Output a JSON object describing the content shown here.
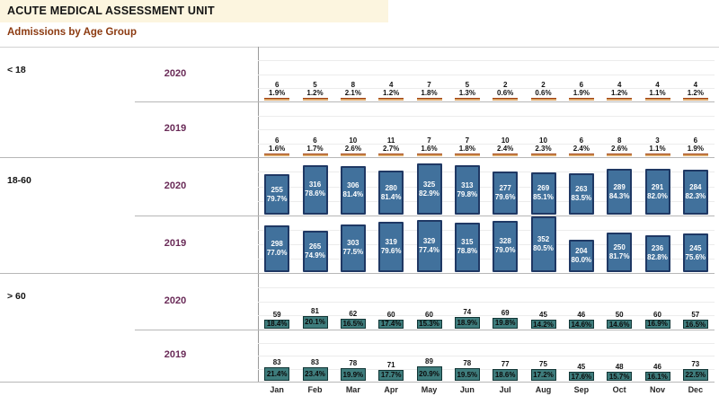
{
  "header": {
    "title": "ACUTE MEDICAL ASSESSMENT UNIT",
    "subtitle": "Admissions by Age Group"
  },
  "colors": {
    "title_band_bg": "#FCF5DF",
    "subtitle_text": "#8C3A10",
    "year_label_text": "#692A57",
    "bar_blue_fill": "#41719C",
    "bar_blue_border": "#1F3864",
    "bar_teal_fill": "#3E7C7C",
    "bar_teal_border": "#113535",
    "bar_orange_fill": "#D9A466",
    "bar_orange_border": "#9C3A0D"
  },
  "chart_data": {
    "type": "bar",
    "title": "ACUTE MEDICAL ASSESSMENT UNIT",
    "subtitle": "Admissions by Age Group",
    "categories": [
      "Jan",
      "Feb",
      "Mar",
      "Apr",
      "May",
      "Jun",
      "Jul",
      "Aug",
      "Sep",
      "Oct",
      "Nov",
      "Dec"
    ],
    "layout_hints": {
      "panel_chart": true,
      "rows": "age group x year (6 panels)",
      "value_axis_hidden": true,
      "grid": "faint horizontal gridlines per panel",
      "labels": "count and percent shown on each bar"
    },
    "groups": [
      {
        "label": "< 18",
        "bar_style": "thin-orange",
        "series": [
          {
            "name": "2020",
            "values": [
              6,
              5,
              8,
              4,
              7,
              5,
              2,
              2,
              6,
              4,
              4,
              4
            ],
            "percent_labels": [
              "1.9%",
              "1.2%",
              "2.1%",
              "1.2%",
              "1.8%",
              "1.3%",
              "0.6%",
              "0.6%",
              "1.9%",
              "1.2%",
              "1.1%",
              "1.2%"
            ]
          },
          {
            "name": "2019",
            "values": [
              6,
              6,
              10,
              11,
              7,
              7,
              10,
              10,
              6,
              8,
              3,
              6
            ],
            "percent_labels": [
              "1.6%",
              "1.7%",
              "2.6%",
              "2.7%",
              "1.6%",
              "1.8%",
              "2.4%",
              "2.3%",
              "2.4%",
              "2.6%",
              "1.1%",
              "1.9%"
            ]
          }
        ]
      },
      {
        "label": "18-60",
        "bar_style": "blue",
        "series": [
          {
            "name": "2020",
            "values": [
              255,
              316,
              306,
              280,
              325,
              313,
              277,
              269,
              263,
              289,
              291,
              284
            ],
            "percent_labels": [
              "79.7%",
              "78.6%",
              "81.4%",
              "81.4%",
              "82.9%",
              "79.8%",
              "79.6%",
              "85.1%",
              "83.5%",
              "84.3%",
              "82.0%",
              "82.3%"
            ]
          },
          {
            "name": "2019",
            "values": [
              298,
              265,
              303,
              319,
              329,
              315,
              328,
              352,
              204,
              250,
              236,
              245
            ],
            "percent_labels": [
              "77.0%",
              "74.9%",
              "77.5%",
              "79.6%",
              "77.4%",
              "78.8%",
              "79.0%",
              "80.5%",
              "80.0%",
              "81.7%",
              "82.8%",
              "75.6%"
            ]
          }
        ]
      },
      {
        "label": "> 60",
        "bar_style": "teal",
        "series": [
          {
            "name": "2020",
            "values": [
              59,
              81,
              62,
              60,
              60,
              74,
              69,
              45,
              46,
              50,
              60,
              57
            ],
            "percent_labels": [
              "18.4%",
              "20.1%",
              "16.5%",
              "17.4%",
              "15.3%",
              "18.9%",
              "19.8%",
              "14.2%",
              "14.6%",
              "14.6%",
              "16.9%",
              "16.5%"
            ]
          },
          {
            "name": "2019",
            "values": [
              83,
              83,
              78,
              71,
              89,
              78,
              77,
              75,
              45,
              48,
              46,
              73
            ],
            "percent_labels": [
              "21.4%",
              "23.4%",
              "19.9%",
              "17.7%",
              "20.9%",
              "19.5%",
              "18.6%",
              "17.2%",
              "17.6%",
              "15.7%",
              "16.1%",
              "22.5%"
            ]
          }
        ]
      }
    ]
  }
}
